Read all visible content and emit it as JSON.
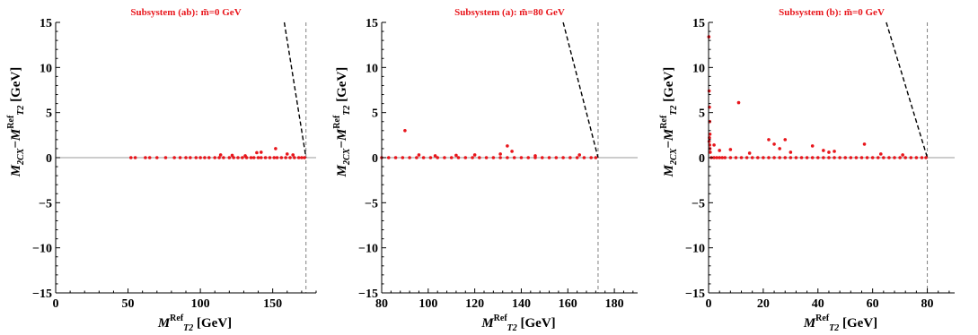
{
  "figure": {
    "panels": [
      {
        "title": "Subsystem (ab): m̃=0 GeV",
        "xlabel": "M_T2^Ref [GeV]",
        "ylabel": "M_2CX − M_T2^Ref [GeV]",
        "xticks": [
          "0",
          "50",
          "100",
          "150"
        ],
        "yticks": [
          "15",
          "10",
          "5",
          "0",
          "−5",
          "−10",
          "−15"
        ]
      },
      {
        "title": "Subsystem (a): m̃=80 GeV",
        "xlabel": "M_T2^Ref [GeV]",
        "ylabel": "M_2CX − M_T2^Ref [GeV]",
        "xticks": [
          "80",
          "100",
          "120",
          "140",
          "160",
          "180"
        ],
        "yticks": [
          "15",
          "10",
          "5",
          "0",
          "−5",
          "−10",
          "−15"
        ]
      },
      {
        "title": "Subsystem (b): m̃=0 GeV",
        "xlabel": "M_T2^Ref [GeV]",
        "ylabel": "M_2CX − M_T2^Ref [GeV]",
        "xticks": [
          "0",
          "20",
          "40",
          "60",
          "80"
        ],
        "yticks": [
          "15",
          "10",
          "5",
          "0",
          "−5",
          "−10",
          "−15"
        ]
      }
    ]
  },
  "chart_data": [
    {
      "type": "scatter",
      "title": "Subsystem (ab): m̃=0 GeV",
      "xlabel": "M_T2^Ref [GeV]",
      "ylabel": "M_2CX − M_T2^Ref [GeV]",
      "xlim": [
        0,
        180
      ],
      "ylim": [
        -15,
        15
      ],
      "xticks": [
        0,
        50,
        100,
        150
      ],
      "yticks": [
        -15,
        -10,
        -5,
        0,
        5,
        10,
        15
      ],
      "grid": false,
      "ref_x": 173,
      "boundary": {
        "x": [
          158,
          173
        ],
        "y": [
          15,
          0
        ]
      },
      "series": [
        {
          "x": [
            52,
            55,
            62,
            65,
            70,
            76,
            82,
            86,
            90,
            93,
            97,
            100,
            103,
            106,
            110,
            113,
            116,
            120,
            123,
            126,
            129,
            132,
            135,
            137,
            140,
            142,
            145,
            148,
            151,
            153,
            156,
            159,
            162,
            165,
            168,
            170,
            172,
            114,
            122,
            131,
            139,
            142,
            152,
            160,
            164
          ],
          "y": [
            0,
            0,
            0,
            0,
            0,
            0,
            0,
            0,
            0,
            0,
            0,
            0,
            0,
            0,
            0,
            0,
            0,
            0,
            0,
            0,
            0,
            0,
            0,
            0,
            0,
            0,
            0,
            0,
            0,
            0,
            0,
            0,
            0,
            0,
            0,
            0,
            0,
            0.3,
            0.25,
            0.2,
            0.55,
            0.6,
            1.0,
            0.4,
            0.3
          ]
        }
      ]
    },
    {
      "type": "scatter",
      "title": "Subsystem (a): m̃=80 GeV",
      "xlabel": "M_T2^Ref [GeV]",
      "ylabel": "M_2CX − M_T2^Ref [GeV]",
      "xlim": [
        80,
        190
      ],
      "ylim": [
        -15,
        15
      ],
      "xticks": [
        80,
        100,
        120,
        140,
        160,
        180
      ],
      "yticks": [
        -15,
        -10,
        -5,
        0,
        5,
        10,
        15
      ],
      "grid": false,
      "ref_x": 173,
      "boundary": {
        "x": [
          158,
          173
        ],
        "y": [
          15,
          0
        ]
      },
      "series": [
        {
          "x": [
            80,
            83,
            86,
            89,
            92,
            95,
            98,
            101,
            104,
            107,
            110,
            113,
            116,
            119,
            122,
            125,
            128,
            131,
            134,
            137,
            140,
            143,
            146,
            149,
            152,
            155,
            158,
            161,
            164,
            167,
            170,
            172,
            90,
            96,
            103,
            112,
            120,
            131,
            134,
            136,
            146,
            165
          ],
          "y": [
            0,
            0,
            0,
            0,
            0,
            0,
            0,
            0,
            0,
            0,
            0,
            0,
            0,
            0,
            0,
            0,
            0,
            0,
            0,
            0,
            0,
            0,
            0,
            0,
            0,
            0,
            0,
            0,
            0,
            0,
            0,
            0,
            3.0,
            0.3,
            0.2,
            0.25,
            0.3,
            0.4,
            1.3,
            0.7,
            0.2,
            0.3
          ]
        }
      ]
    },
    {
      "type": "scatter",
      "title": "Subsystem (b): m̃=0 GeV",
      "xlabel": "M_T2^Ref [GeV]",
      "ylabel": "M_2CX − M_T2^Ref [GeV]",
      "xlim": [
        0,
        90
      ],
      "ylim": [
        -15,
        15
      ],
      "xticks": [
        0,
        20,
        40,
        60,
        80
      ],
      "yticks": [
        -15,
        -10,
        -5,
        0,
        5,
        10,
        15
      ],
      "grid": false,
      "ref_x": 80,
      "boundary": {
        "x": [
          65,
          80
        ],
        "y": [
          15,
          0
        ]
      },
      "series": [
        {
          "x": [
            0.1,
            0.2,
            0.3,
            0.4,
            0.5,
            0.3,
            0.2,
            0.4,
            0.5,
            0.6,
            1,
            2,
            3,
            4,
            5,
            6,
            8,
            10,
            12,
            14,
            16,
            18,
            20,
            22,
            24,
            26,
            28,
            30,
            32,
            34,
            36,
            38,
            40,
            42,
            44,
            46,
            48,
            50,
            52,
            54,
            56,
            58,
            60,
            62,
            64,
            66,
            68,
            70,
            72,
            74,
            76,
            78,
            79.5,
            11,
            2,
            4,
            8,
            15,
            22,
            24,
            26,
            28,
            30,
            38,
            42,
            44,
            46,
            57,
            63,
            71
          ],
          "y": [
            13.4,
            7.4,
            5.6,
            4.0,
            2.6,
            2.2,
            1.8,
            1.4,
            1.0,
            0.6,
            0,
            0,
            0,
            0,
            0,
            0,
            0,
            0,
            0,
            0,
            0,
            0,
            0,
            0,
            0,
            0,
            0,
            0,
            0,
            0,
            0,
            0,
            0,
            0,
            0,
            0,
            0,
            0,
            0,
            0,
            0,
            0,
            0,
            0,
            0,
            0,
            0,
            0,
            0,
            0,
            0,
            0,
            0,
            6.1,
            1.4,
            0.8,
            0.9,
            0.5,
            2.0,
            1.5,
            1.0,
            2.0,
            0.6,
            1.3,
            0.8,
            0.6,
            0.7,
            1.5,
            0.4,
            0.3
          ]
        }
      ]
    }
  ]
}
